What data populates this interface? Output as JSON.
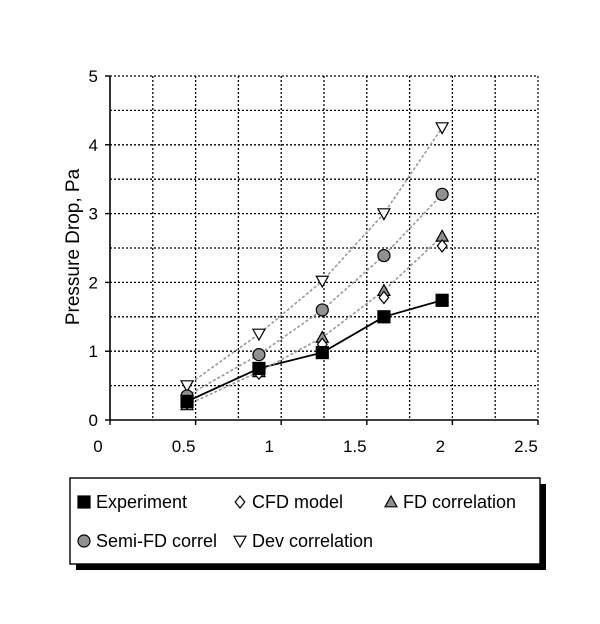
{
  "chart_data": {
    "type": "scatter",
    "title": "",
    "xlabel": "",
    "ylabel": "Pressure Drop, Pa",
    "xlim": [
      0,
      2.5
    ],
    "ylim": [
      0,
      5
    ],
    "x_ticks": [
      "0",
      "0.5",
      "1",
      "1.5",
      "2",
      "2.5"
    ],
    "y_ticks": [
      "0",
      "1",
      "2",
      "3",
      "4",
      "5"
    ],
    "grid": true,
    "legend_position": "bottom",
    "series": [
      {
        "name": "Experiment",
        "marker": "square",
        "fill": "#000000",
        "line": "solid",
        "x": [
          0.45,
          0.87,
          1.24,
          1.6,
          1.94
        ],
        "y": [
          0.27,
          0.75,
          0.98,
          1.5,
          1.74
        ]
      },
      {
        "name": "CFD model",
        "marker": "diamond",
        "fill": "#ffffff",
        "line": "none",
        "x": [
          0.45,
          0.87,
          1.24,
          1.6,
          1.94
        ],
        "y": [
          0.25,
          0.68,
          1.1,
          1.78,
          2.53
        ]
      },
      {
        "name": "FD correlation",
        "marker": "triangle-up",
        "fill": "#909090",
        "line": "dotted",
        "x": [
          0.45,
          0.87,
          1.24,
          1.6,
          1.94
        ],
        "y": [
          0.22,
          0.7,
          1.2,
          1.88,
          2.67
        ]
      },
      {
        "name": "Semi-FD correl",
        "marker": "circle",
        "fill": "#909090",
        "line": "dotted",
        "x": [
          0.45,
          0.87,
          1.24,
          1.6,
          1.94
        ],
        "y": [
          0.35,
          0.95,
          1.6,
          2.39,
          3.28
        ]
      },
      {
        "name": "Dev correlation",
        "marker": "triangle-down",
        "fill": "#ffffff",
        "line": "dotted",
        "x": [
          0.45,
          0.87,
          1.24,
          1.6,
          1.94
        ],
        "y": [
          0.5,
          1.25,
          2.02,
          3.0,
          4.25
        ]
      }
    ]
  }
}
